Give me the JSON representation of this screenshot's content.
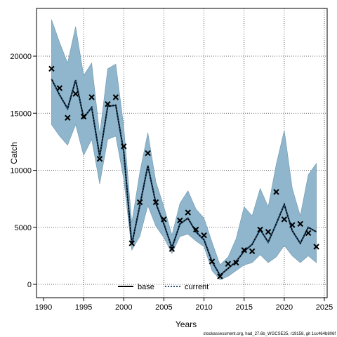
{
  "chart_data": {
    "type": "line",
    "xlabel": "Years",
    "ylabel": "Catch",
    "xlim": [
      1990,
      2025
    ],
    "ylim": [
      0,
      20000
    ],
    "x_ticks": [
      "1990",
      "1995",
      "2000",
      "2005",
      "2010",
      "2015",
      "2020",
      "2025"
    ],
    "y_ticks": [
      "0",
      "5000",
      "10000",
      "15000",
      "20000"
    ],
    "grid": true,
    "legend_position": "bottom-center",
    "band_color": "#8fb6cc",
    "x": [
      1991,
      1992,
      1993,
      1994,
      1995,
      1996,
      1997,
      1998,
      1999,
      2000,
      2001,
      2002,
      2003,
      2004,
      2005,
      2006,
      2007,
      2008,
      2009,
      2010,
      2011,
      2012,
      2013,
      2014,
      2015,
      2016,
      2017,
      2018,
      2019,
      2020,
      2021,
      2022,
      2023,
      2024
    ],
    "series": [
      {
        "name": "base",
        "style": "solid",
        "color": "#000000",
        "values": [
          18000,
          16600,
          15400,
          17900,
          14600,
          15500,
          11200,
          15600,
          15700,
          11600,
          3500,
          6900,
          10400,
          7100,
          5300,
          3200,
          5300,
          5800,
          4600,
          3900,
          2000,
          800,
          1400,
          2000,
          2900,
          3500,
          4800,
          3700,
          5300,
          7000,
          4700,
          3600,
          5000,
          4600
        ]
      },
      {
        "name": "current",
        "style": "dotted",
        "color": "#1f4e79",
        "values": [
          18000,
          16600,
          15400,
          17900,
          14600,
          15500,
          11200,
          15600,
          15700,
          11600,
          3500,
          6900,
          10400,
          7100,
          5300,
          3200,
          5300,
          5800,
          4600,
          3900,
          2000,
          800,
          1400,
          2000,
          2900,
          3500,
          4800,
          3700,
          5300,
          7000,
          4700,
          3600,
          5000,
          4600
        ]
      }
    ],
    "interval_upper": [
      23200,
      21200,
      19400,
      22600,
      18300,
      19400,
      13100,
      18900,
      19300,
      13800,
      5400,
      9800,
      13300,
      9000,
      6800,
      4300,
      7100,
      8200,
      6600,
      5800,
      3700,
      1700,
      2400,
      4000,
      6800,
      6000,
      8400,
      6800,
      10500,
      13500,
      8400,
      6000,
      9600,
      10600
    ],
    "interval_lower": [
      14000,
      13000,
      12200,
      14000,
      11300,
      12700,
      8800,
      12700,
      13000,
      9200,
      3000,
      4200,
      6900,
      5100,
      4100,
      2700,
      4200,
      4400,
      3800,
      3300,
      1200,
      400,
      700,
      1200,
      1700,
      1900,
      2600,
      1900,
      2400,
      3400,
      2500,
      1900,
      2500,
      1900
    ],
    "observed": [
      18900,
      17200,
      14600,
      16700,
      14700,
      16400,
      11000,
      15800,
      16400,
      12100,
      3600,
      7200,
      11500,
      7200,
      5700,
      3100,
      5600,
      6300,
      4800,
      4300,
      2000,
      700,
      1800,
      1900,
      3000,
      2900,
      4800,
      4600,
      8100,
      5700,
      5200,
      5300,
      4500,
      3300
    ],
    "legend": [
      "base",
      "current"
    ],
    "footnote": "stockassessment.org, had_27.6b_WGCSE25, r19158, git 1cc464b806f"
  }
}
